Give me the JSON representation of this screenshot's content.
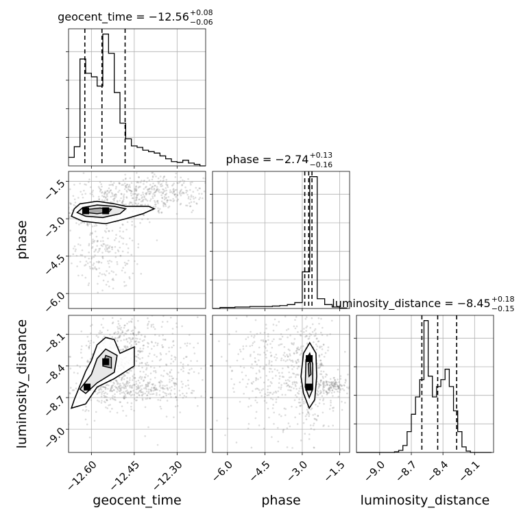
{
  "chart_data": {
    "type": "corner",
    "parameters": [
      "geocent_time",
      "phase",
      "luminosity_distance"
    ],
    "titles": [
      {
        "param": "geocent_time",
        "prefix": "geocent_time = ",
        "median": "−12.56",
        "plus": "+0.08",
        "minus": "−0.06"
      },
      {
        "param": "phase",
        "prefix": "phase = ",
        "median": "−2.74",
        "plus": "+0.13",
        "minus": "−0.16"
      },
      {
        "param": "luminosity_distance",
        "prefix": "luminosity_distance = ",
        "median": "−8.45",
        "plus": "+0.18",
        "minus": "−0.15"
      }
    ],
    "axis_labels": {
      "x": [
        "geocent_time",
        "phase",
        "luminosity_distance"
      ],
      "y": [
        "phase",
        "luminosity_distance"
      ]
    },
    "ranges": {
      "geocent_time": [
        -12.68,
        -12.2
      ],
      "phase": [
        -6.6,
        -1.1
      ],
      "luminosity_distance": [
        -9.22,
        -7.92
      ]
    },
    "ticks": {
      "geocent_time": [
        -12.6,
        -12.45,
        -12.3
      ],
      "phase": [
        -6.0,
        -4.5,
        -3.0,
        -1.5
      ],
      "luminosity_distance": [
        -9.0,
        -8.7,
        -8.4,
        -8.1
      ]
    },
    "tick_labels": {
      "geocent_time": [
        "−12.60",
        "−12.45",
        "−12.30"
      ],
      "phase": [
        "−6.0",
        "−4.5",
        "−3.0",
        "−1.5"
      ],
      "luminosity_distance": [
        "−9.0",
        "−8.7",
        "−8.4",
        "−8.1"
      ]
    },
    "histograms": {
      "geocent_time": {
        "edges": [
          -12.68,
          -12.66,
          -12.64,
          -12.62,
          -12.6,
          -12.58,
          -12.56,
          -12.54,
          -12.52,
          -12.5,
          -12.48,
          -12.46,
          -12.44,
          -12.42,
          -12.4,
          -12.38,
          -12.36,
          -12.34,
          -12.32,
          -12.3,
          -12.28,
          -12.26,
          -12.24,
          -12.22,
          -12.2
        ],
        "counts": [
          12,
          27,
          150,
          130,
          125,
          112,
          185,
          158,
          103,
          60,
          38,
          28,
          26,
          22,
          20,
          18,
          14,
          10,
          6,
          5,
          8,
          4,
          2,
          0
        ],
        "quantiles": [
          -12.623,
          -12.563,
          -12.482
        ]
      },
      "phase": {
        "edges": [
          -6.6,
          -6.3,
          -6.0,
          -5.7,
          -5.4,
          -5.1,
          -4.8,
          -4.5,
          -4.2,
          -3.9,
          -3.6,
          -3.3,
          -3.0,
          -2.7,
          -2.4,
          -2.1,
          -1.8,
          -1.5,
          -1.2
        ],
        "counts": [
          0,
          2,
          2,
          3,
          3,
          4,
          4,
          4,
          5,
          6,
          8,
          12,
          75,
          270,
          20,
          8,
          3,
          1
        ],
        "quantiles": [
          -2.9,
          -2.74,
          -2.61
        ]
      },
      "luminosity_distance": {
        "edges": [
          -9.22,
          -9.18,
          -9.14,
          -9.1,
          -9.06,
          -9.02,
          -8.98,
          -8.94,
          -8.9,
          -8.86,
          -8.82,
          -8.78,
          -8.74,
          -8.7,
          -8.66,
          -8.62,
          -8.58,
          -8.54,
          -8.5,
          -8.46,
          -8.42,
          -8.38,
          -8.34,
          -8.3,
          -8.26,
          -8.22,
          -8.18,
          -8.14,
          -8.1,
          -8.06,
          -8.02,
          -7.98,
          -7.94
        ],
        "counts": [
          0,
          0,
          0,
          0,
          0,
          0,
          0,
          0,
          0,
          1,
          3,
          10,
          30,
          55,
          80,
          105,
          190,
          110,
          80,
          95,
          105,
          120,
          95,
          60,
          30,
          8,
          2,
          0,
          0,
          0,
          0,
          0
        ],
        "quantiles": [
          -8.6,
          -8.45,
          -8.27
        ]
      }
    },
    "contours": {
      "phase_vs_geocent_time": {
        "outer": [
          [
            -12.64,
            -2.4
          ],
          [
            -12.58,
            -2.3
          ],
          [
            -12.52,
            -2.4
          ],
          [
            -12.48,
            -2.5
          ],
          [
            -12.4,
            -2.5
          ],
          [
            -12.38,
            -2.6
          ],
          [
            -12.42,
            -2.8
          ],
          [
            -12.48,
            -3.0
          ],
          [
            -12.55,
            -3.2
          ],
          [
            -12.63,
            -3.1
          ],
          [
            -12.67,
            -2.9
          ],
          [
            -12.66,
            -2.6
          ]
        ],
        "middle": [
          [
            -12.63,
            -2.55
          ],
          [
            -12.58,
            -2.45
          ],
          [
            -12.52,
            -2.5
          ],
          [
            -12.48,
            -2.6
          ],
          [
            -12.5,
            -2.8
          ],
          [
            -12.56,
            -2.95
          ],
          [
            -12.62,
            -2.9
          ],
          [
            -12.65,
            -2.75
          ]
        ],
        "inner": [
          [
            -12.61,
            -2.62
          ],
          [
            -12.57,
            -2.57
          ],
          [
            -12.53,
            -2.62
          ],
          [
            -12.54,
            -2.74
          ],
          [
            -12.58,
            -2.8
          ],
          [
            -12.62,
            -2.75
          ]
        ],
        "hotspots": [
          [
            -12.62,
            -2.68
          ],
          [
            -12.55,
            -2.68
          ]
        ],
        "clouds": [
          {
            "center": [
              -12.5,
              -2.3
            ],
            "spread": [
              0.1,
              0.45
            ],
            "count": 300
          },
          {
            "center": [
              -12.35,
              -1.9
            ],
            "spread": [
              0.09,
              0.35
            ],
            "count": 260
          },
          {
            "center": [
              -12.55,
              -4.2
            ],
            "spread": [
              0.06,
              0.9
            ],
            "count": 220
          },
          {
            "center": [
              -12.62,
              -2.8
            ],
            "spread": [
              0.04,
              0.2
            ],
            "count": 180
          }
        ]
      },
      "luminosity_distance_vs_geocent_time": {
        "outer": [
          [
            -12.66,
            -8.72
          ],
          [
            -12.62,
            -8.45
          ],
          [
            -12.6,
            -8.35
          ],
          [
            -12.58,
            -8.2
          ],
          [
            -12.55,
            -8.13
          ],
          [
            -12.52,
            -8.15
          ],
          [
            -12.5,
            -8.28
          ],
          [
            -12.45,
            -8.22
          ],
          [
            -12.45,
            -8.4
          ],
          [
            -12.52,
            -8.52
          ],
          [
            -12.58,
            -8.6
          ],
          [
            -12.62,
            -8.76
          ],
          [
            -12.67,
            -8.8
          ]
        ],
        "middle": [
          [
            -12.64,
            -8.62
          ],
          [
            -12.6,
            -8.48
          ],
          [
            -12.58,
            -8.33
          ],
          [
            -12.55,
            -8.24
          ],
          [
            -12.51,
            -8.3
          ],
          [
            -12.52,
            -8.46
          ],
          [
            -12.58,
            -8.56
          ],
          [
            -12.62,
            -8.66
          ]
        ],
        "inner": [
          [
            -12.56,
            -8.4
          ],
          [
            -12.55,
            -8.3
          ],
          [
            -12.53,
            -8.32
          ],
          [
            -12.53,
            -8.42
          ]
        ],
        "hotspots": [
          [
            -12.615,
            -8.6
          ],
          [
            -12.55,
            -8.36
          ]
        ],
        "clouds": [
          {
            "center": [
              -12.55,
              -8.45
            ],
            "spread": [
              0.06,
              0.2
            ],
            "count": 260
          },
          {
            "center": [
              -12.4,
              -8.4
            ],
            "spread": [
              0.1,
              0.22
            ],
            "count": 320
          },
          {
            "center": [
              -12.45,
              -8.62
            ],
            "spread": [
              0.1,
              0.06
            ],
            "count": 220
          },
          {
            "center": [
              -12.48,
              -8.12
            ],
            "spread": [
              0.05,
              0.1
            ],
            "count": 120
          }
        ]
      },
      "luminosity_distance_vs_phase": {
        "outer": [
          [
            -2.95,
            -8.28
          ],
          [
            -2.7,
            -8.18
          ],
          [
            -2.45,
            -8.28
          ],
          [
            -2.42,
            -8.5
          ],
          [
            -2.5,
            -8.72
          ],
          [
            -2.72,
            -8.8
          ],
          [
            -2.95,
            -8.66
          ],
          [
            -3.05,
            -8.5
          ]
        ],
        "middle": [
          [
            -2.85,
            -8.34
          ],
          [
            -2.7,
            -8.28
          ],
          [
            -2.58,
            -8.38
          ],
          [
            -2.58,
            -8.62
          ],
          [
            -2.72,
            -8.7
          ],
          [
            -2.88,
            -8.6
          ]
        ],
        "inner": [
          [
            -2.76,
            -8.38
          ],
          [
            -2.68,
            -8.36
          ],
          [
            -2.65,
            -8.48
          ],
          [
            -2.73,
            -8.5
          ]
        ],
        "hotspots": [
          [
            -2.74,
            -8.6
          ],
          [
            -2.72,
            -8.33
          ]
        ],
        "clouds": [
          {
            "center": [
              -3.8,
              -8.45
            ],
            "spread": [
              1.1,
              0.3
            ],
            "count": 420
          },
          {
            "center": [
              -2.6,
              -8.5
            ],
            "spread": [
              0.35,
              0.25
            ],
            "count": 260
          },
          {
            "center": [
              -1.8,
              -8.58
            ],
            "spread": [
              0.3,
              0.05
            ],
            "count": 120
          }
        ]
      }
    }
  }
}
